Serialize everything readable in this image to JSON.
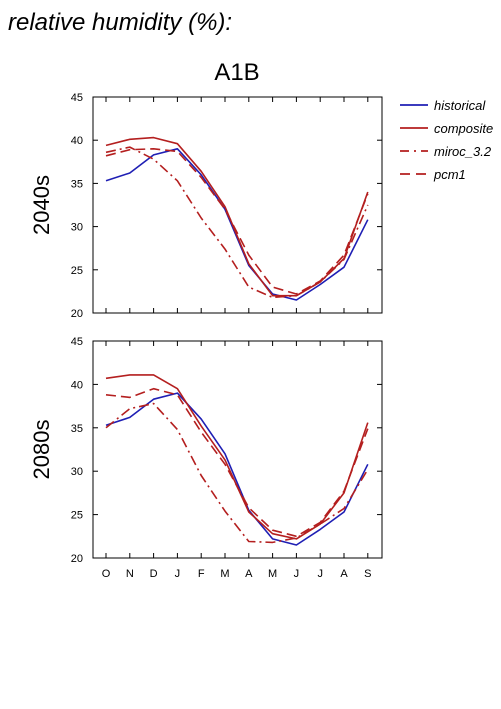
{
  "figure": {
    "heading": "relative humidity (%):",
    "scenario": "A1B"
  },
  "colors": {
    "historical": "#1f1fb4",
    "model": "#b41f1f",
    "axis": "#000000"
  },
  "legend": [
    {
      "name": "historical",
      "style": "solid",
      "color": "#1f1fb4"
    },
    {
      "name": "composite",
      "style": "solid",
      "color": "#b41f1f"
    },
    {
      "name": "miroc_3.2",
      "style": "dashdot",
      "color": "#b41f1f"
    },
    {
      "name": "pcm1",
      "style": "dashed",
      "color": "#b41f1f"
    }
  ],
  "chart_data": [
    {
      "type": "line",
      "row_label": "2040s",
      "categories": [
        "O",
        "N",
        "D",
        "J",
        "F",
        "M",
        "A",
        "M",
        "J",
        "J",
        "A",
        "S"
      ],
      "ylim": [
        20,
        45
      ],
      "yticks": [
        20,
        25,
        30,
        35,
        40,
        45
      ],
      "series": [
        {
          "name": "historical",
          "style": "solid",
          "values": [
            35.3,
            36.2,
            38.3,
            39.0,
            36.0,
            32.0,
            25.5,
            22.2,
            21.5,
            23.3,
            25.3,
            30.8
          ]
        },
        {
          "name": "composite",
          "style": "solid",
          "values": [
            39.4,
            40.1,
            40.3,
            39.6,
            36.4,
            32.3,
            25.7,
            22.0,
            22.0,
            23.6,
            26.3,
            34.0
          ]
        },
        {
          "name": "miroc_3.2",
          "style": "dashdot",
          "values": [
            38.6,
            39.2,
            37.8,
            35.3,
            31.0,
            27.4,
            23.0,
            21.8,
            22.0,
            23.6,
            26.2,
            32.5
          ]
        },
        {
          "name": "pcm1",
          "style": "dashed",
          "values": [
            38.2,
            38.9,
            39.0,
            38.7,
            35.7,
            32.0,
            26.7,
            23.0,
            22.2,
            23.7,
            26.7,
            33.8
          ]
        }
      ]
    },
    {
      "type": "line",
      "row_label": "2080s",
      "categories": [
        "O",
        "N",
        "D",
        "J",
        "F",
        "M",
        "A",
        "M",
        "J",
        "J",
        "A",
        "S"
      ],
      "ylim": [
        20,
        45
      ],
      "yticks": [
        20,
        25,
        30,
        35,
        40,
        45
      ],
      "series": [
        {
          "name": "historical",
          "style": "solid",
          "values": [
            35.3,
            36.2,
            38.3,
            39.0,
            36.0,
            32.0,
            25.5,
            22.2,
            21.5,
            23.3,
            25.3,
            30.8
          ]
        },
        {
          "name": "composite",
          "style": "solid",
          "values": [
            40.7,
            41.1,
            41.1,
            39.5,
            35.2,
            31.3,
            25.3,
            22.8,
            22.2,
            23.9,
            27.5,
            35.6
          ]
        },
        {
          "name": "miroc_3.2",
          "style": "dashdot",
          "values": [
            35.0,
            37.2,
            37.8,
            34.8,
            29.5,
            25.4,
            21.9,
            21.8,
            22.3,
            23.9,
            25.7,
            30.2
          ]
        },
        {
          "name": "pcm1",
          "style": "dashed",
          "values": [
            38.8,
            38.5,
            39.5,
            38.8,
            34.5,
            30.8,
            25.8,
            23.2,
            22.5,
            24.1,
            27.7,
            34.9
          ]
        }
      ]
    }
  ]
}
